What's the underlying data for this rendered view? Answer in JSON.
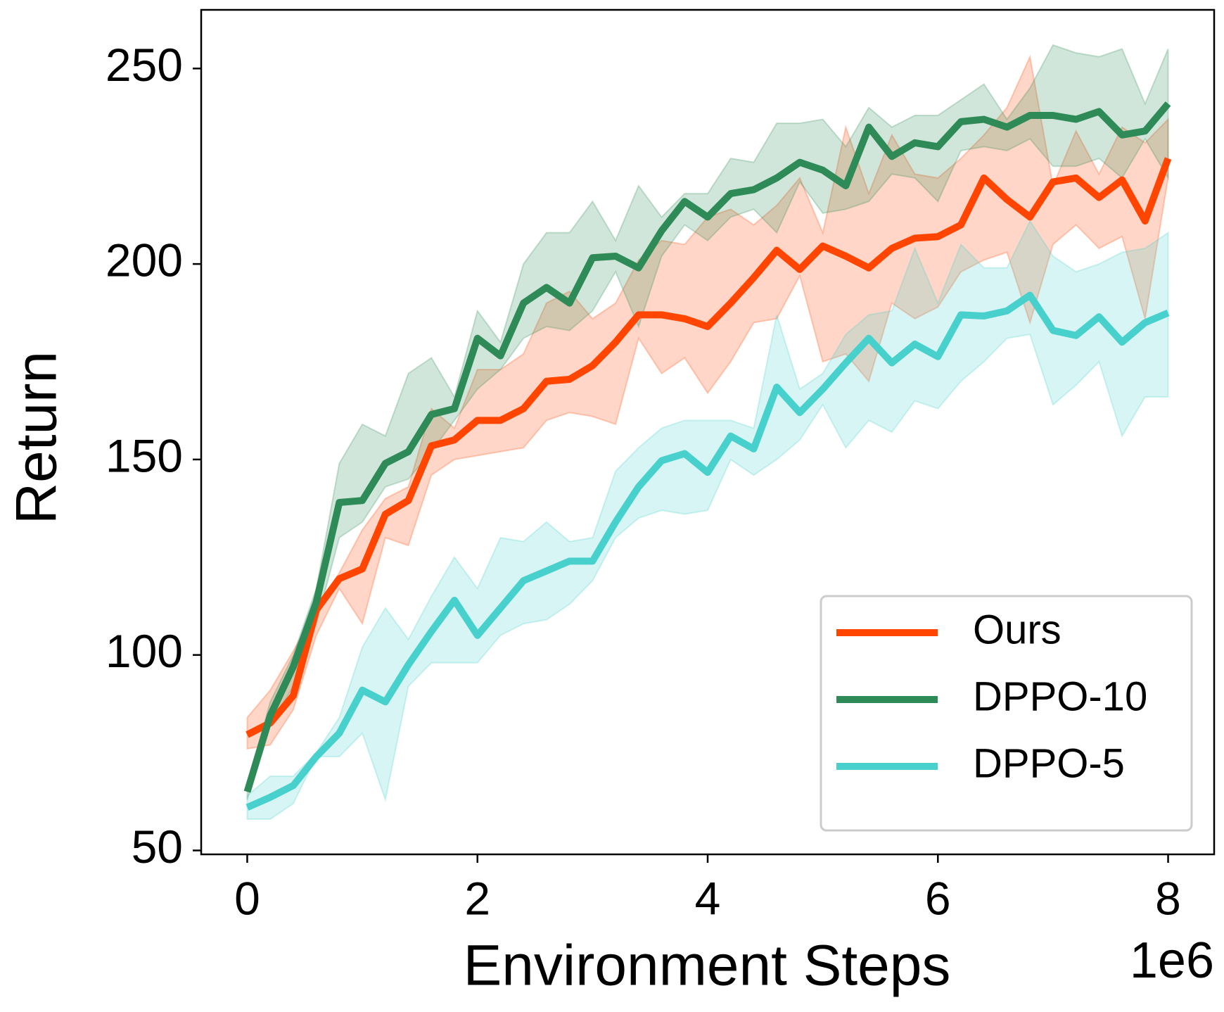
{
  "chart_data": {
    "type": "line",
    "xlabel": "Environment Steps",
    "ylabel": "Return",
    "x_offset_label": "1e6",
    "x": [
      0,
      0.2,
      0.4,
      0.6,
      0.8,
      1,
      1.2,
      1.4,
      1.6,
      1.8,
      2,
      2.2,
      2.4,
      2.6,
      2.8,
      3,
      3.2,
      3.4,
      3.6,
      3.8,
      4,
      4.2,
      4.4,
      4.6,
      4.8,
      5,
      5.2,
      5.4,
      5.6,
      5.8,
      6,
      6.2,
      6.4,
      6.6,
      6.8,
      7,
      7.2,
      7.4,
      7.6,
      7.8,
      8
    ],
    "xlim": [
      -0.4,
      8.4
    ],
    "xticks": [
      0,
      2,
      4,
      6,
      8
    ],
    "ylim": [
      49,
      265
    ],
    "yticks": [
      50,
      100,
      150,
      200,
      250
    ],
    "legend": "lower right",
    "grid": false,
    "series": [
      {
        "name": "Ours",
        "color": "#ff4500",
        "values": [
          79.6,
          82.6,
          89.6,
          111.5,
          119.5,
          122,
          136,
          139.5,
          153.5,
          155,
          160,
          160,
          163,
          170,
          170.5,
          174,
          180,
          187,
          187,
          186,
          184,
          190,
          196.5,
          203.5,
          198.6,
          204.6,
          202,
          199,
          204,
          206.6,
          207,
          210,
          222,
          216.5,
          212,
          221,
          222,
          217,
          221.5,
          211,
          227
        ],
        "upper": [
          84,
          91,
          101,
          112,
          121,
          132,
          140,
          143,
          163,
          158,
          173,
          173,
          177,
          190,
          193,
          186,
          190,
          201,
          206,
          205,
          212,
          214,
          210,
          215,
          222,
          208,
          235,
          218,
          233,
          223,
          222,
          227,
          233,
          240,
          253,
          220,
          234,
          223,
          235,
          231,
          237
        ],
        "lower": [
          76,
          77,
          86,
          105,
          117,
          108,
          130,
          128,
          146,
          150,
          151,
          152,
          153,
          160,
          162,
          161,
          159,
          181,
          172,
          176,
          167,
          175,
          185,
          186,
          197,
          175,
          177,
          170,
          190,
          186,
          189,
          198,
          201,
          203,
          185,
          205,
          210,
          204,
          207,
          186,
          222
        ]
      },
      {
        "name": "DPPO-10",
        "color": "#2e8b57",
        "values": [
          65,
          84.5,
          97,
          113.5,
          139,
          139.5,
          149,
          152,
          161.5,
          163,
          181,
          176.5,
          190,
          194,
          190,
          201.6,
          202,
          199,
          208.5,
          216,
          212,
          218,
          219,
          222,
          226,
          224,
          220,
          235,
          227.5,
          231,
          230,
          236.4,
          237,
          235,
          238,
          238,
          237,
          239,
          233,
          234,
          241
        ],
        "upper": [
          67,
          88,
          100,
          117,
          149,
          159,
          156,
          172,
          176,
          166,
          188,
          180,
          200,
          208,
          208,
          216,
          206,
          220,
          212,
          218,
          218,
          227,
          226,
          236,
          236,
          237,
          230,
          240,
          235,
          238,
          238,
          242,
          246,
          237,
          245,
          256,
          254,
          253,
          255,
          241,
          255
        ],
        "lower": [
          63,
          82,
          92,
          108,
          130,
          134,
          143,
          145,
          152,
          160,
          168,
          173,
          181,
          184,
          183,
          188,
          198,
          184,
          202,
          210,
          206,
          212,
          214,
          208,
          221,
          213,
          214,
          216,
          223,
          222,
          216,
          229,
          230,
          229,
          232,
          225,
          225,
          227,
          222,
          232,
          222
        ]
      },
      {
        "name": "DPPO-5",
        "color": "#48d1cc",
        "values": [
          61,
          63.6,
          66.6,
          74,
          80,
          91,
          88,
          97.5,
          106,
          114,
          105,
          112,
          119,
          121.5,
          124,
          124,
          134,
          143,
          149.7,
          151.5,
          146.7,
          156,
          152.7,
          168.5,
          162,
          168,
          174.7,
          181,
          174.7,
          179.5,
          176.3,
          187,
          186.7,
          188,
          192,
          183,
          181.7,
          186.5,
          180,
          185,
          187.5
        ],
        "upper": [
          64,
          69,
          69,
          75,
          84,
          102,
          112,
          104,
          115,
          125,
          117,
          130,
          129,
          134,
          129,
          130,
          147,
          153,
          158,
          160,
          160,
          160,
          158,
          187,
          168,
          172,
          182,
          187,
          188,
          204,
          190,
          205,
          199,
          199,
          211,
          202,
          198,
          200,
          203,
          204,
          208
        ],
        "lower": [
          58,
          58,
          62,
          74,
          74,
          80,
          63,
          92,
          98,
          98,
          98,
          105,
          108,
          109,
          113,
          119,
          130,
          135,
          137,
          136,
          137,
          150,
          146,
          150,
          155,
          164,
          153,
          160,
          157,
          165,
          163,
          170,
          175,
          181,
          182,
          164,
          169,
          175,
          156,
          166,
          166
        ]
      }
    ]
  }
}
